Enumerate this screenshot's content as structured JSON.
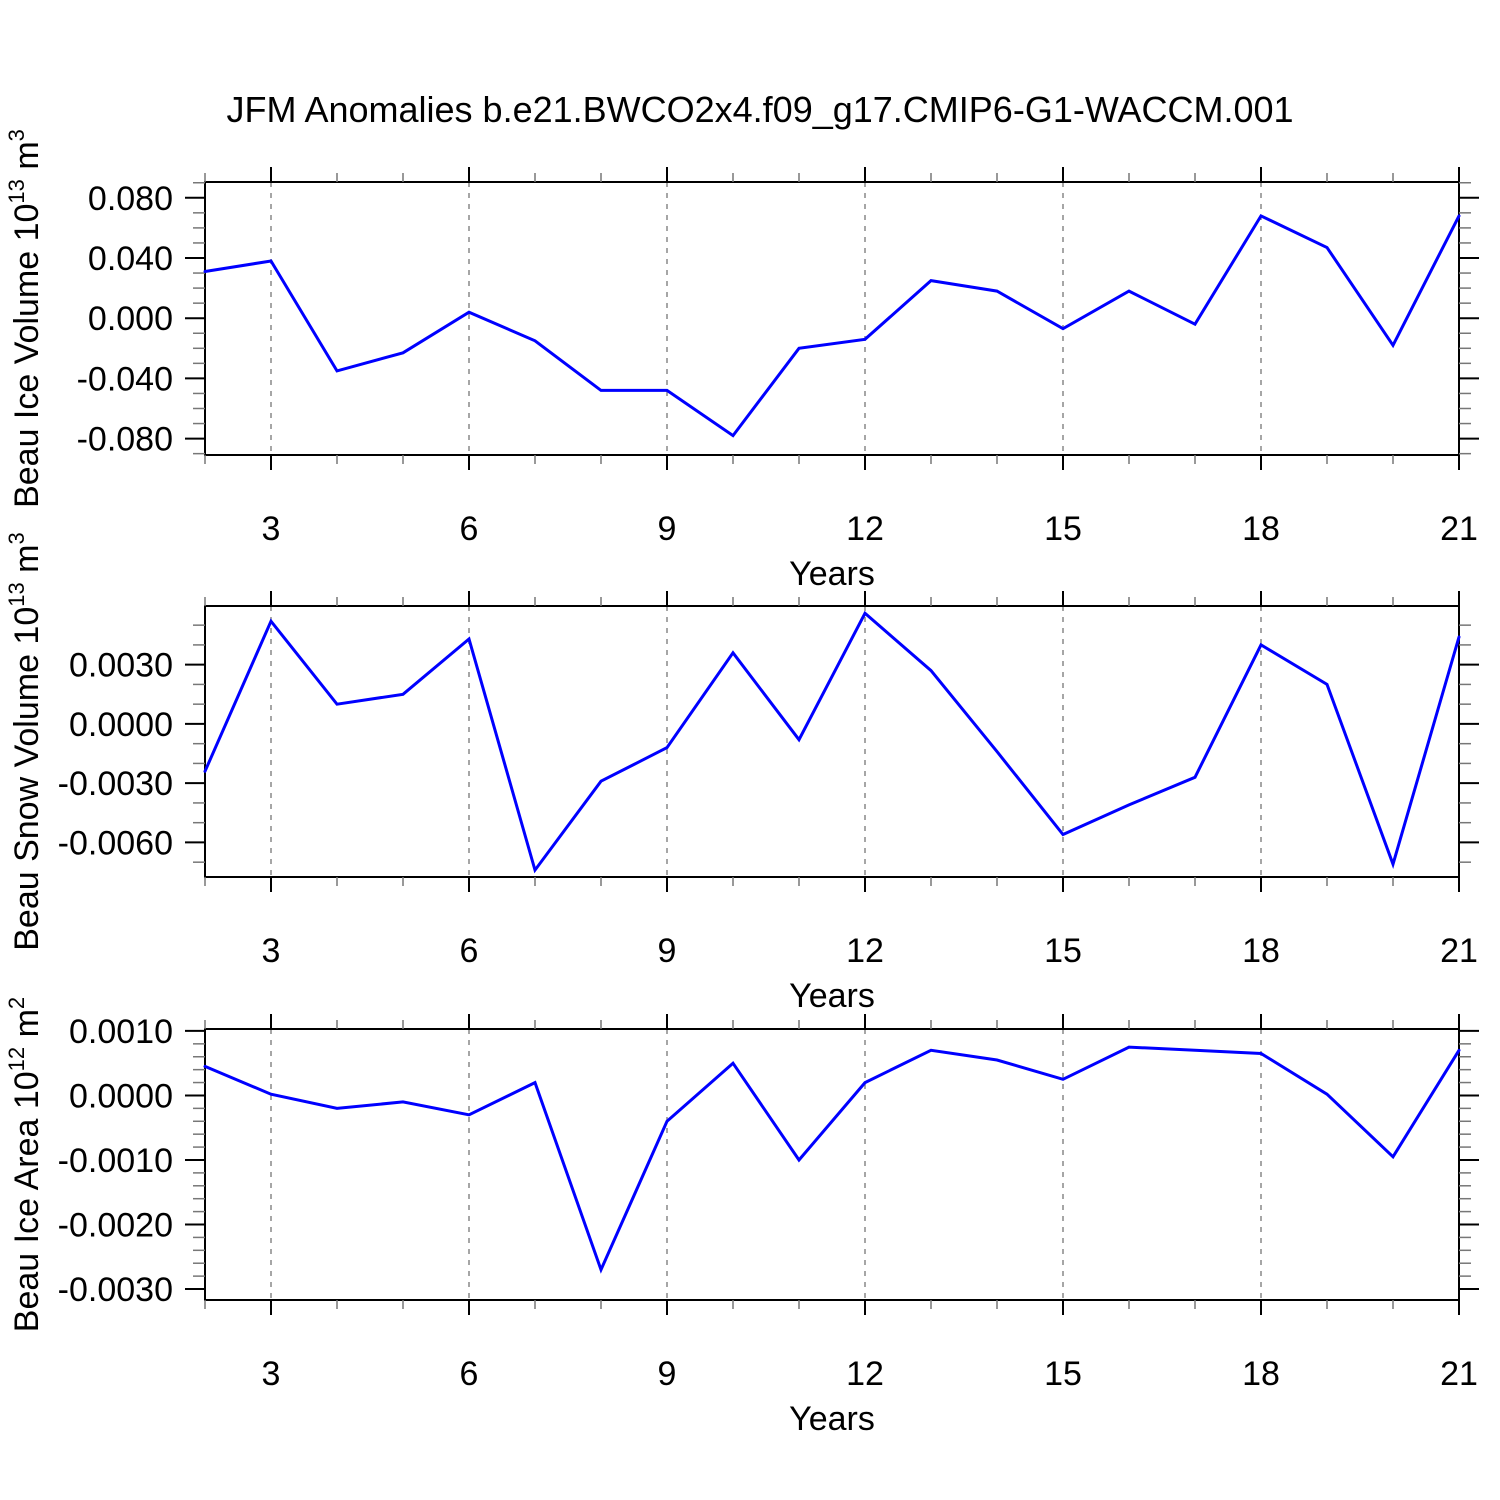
{
  "title": "JFM Anomalies b.e21.BWCO2x4.f09_g17.CMIP6-G1-WACCM.001",
  "line_color": "#0000ff",
  "grid_color": "#888888",
  "axis_color": "#000000",
  "minor_tick_color": "#777777",
  "x_axis": {
    "label": "Years",
    "range": [
      2,
      21
    ],
    "major_ticks": [
      3,
      6,
      9,
      12,
      15,
      18,
      21
    ],
    "tick_labels": [
      "3",
      "6",
      "9",
      "12",
      "15",
      "18",
      "21"
    ],
    "minor_step": 1,
    "gridline_years": [
      3,
      6,
      9,
      12,
      15,
      18
    ]
  },
  "chart_data": [
    {
      "type": "line",
      "name": "beau-ice-volume",
      "ylabel": "Beau Ice Volume 10^13 m^3",
      "ylabel_parts": {
        "prefix": "Beau Ice Volume 10",
        "sup1": "13",
        "mid": " m",
        "sup2": "3"
      },
      "x": [
        2,
        3,
        4,
        5,
        6,
        7,
        8,
        9,
        10,
        11,
        12,
        13,
        14,
        15,
        16,
        17,
        18,
        19,
        20,
        21
      ],
      "values": [
        0.031,
        0.038,
        -0.035,
        -0.023,
        0.004,
        -0.015,
        -0.048,
        -0.048,
        -0.078,
        -0.02,
        -0.014,
        0.025,
        0.018,
        -0.007,
        0.018,
        -0.004,
        0.068,
        0.047,
        -0.018,
        0.068
      ],
      "ylim": [
        -0.0909,
        0.0905
      ],
      "ytick_values": [
        0.08,
        0.04,
        0.0,
        -0.04,
        -0.08
      ],
      "ytick_labels": [
        "0.080",
        "0.040",
        "0.000",
        "-0.040",
        "-0.080"
      ],
      "yminor_step": 0.01,
      "grid": "x-dashed",
      "legend": "none"
    },
    {
      "type": "line",
      "name": "beau-snow-volume",
      "ylabel": "Beau Snow Volume 10^13 m^3",
      "ylabel_parts": {
        "prefix": "Beau Snow Volume 10",
        "sup1": "13",
        "mid": " m",
        "sup2": "3"
      },
      "x": [
        2,
        3,
        4,
        5,
        6,
        7,
        8,
        9,
        10,
        11,
        12,
        13,
        14,
        15,
        16,
        17,
        18,
        19,
        20,
        21
      ],
      "values": [
        -0.0024,
        0.0052,
        0.001,
        0.0015,
        0.0043,
        -0.0074,
        -0.0029,
        -0.0012,
        0.0036,
        -0.0008,
        0.0056,
        0.0027,
        -0.0014,
        -0.0056,
        -0.0041,
        -0.0027,
        0.004,
        0.002,
        -0.0071,
        0.0044
      ],
      "ylim": [
        -0.00775,
        0.00597
      ],
      "ytick_values": [
        0.003,
        0.0,
        -0.003,
        -0.006
      ],
      "ytick_labels": [
        "0.0030",
        "0.0000",
        "-0.0030",
        "-0.0060"
      ],
      "yminor_step": 0.001,
      "grid": "x-dashed",
      "legend": "none"
    },
    {
      "type": "line",
      "name": "beau-ice-area",
      "ylabel": "Beau Ice Area 10^12 m^2",
      "ylabel_parts": {
        "prefix": "Beau Ice Area 10",
        "sup1": "12",
        "mid": " m",
        "sup2": "2"
      },
      "x": [
        2,
        3,
        4,
        5,
        6,
        7,
        8,
        9,
        10,
        11,
        12,
        13,
        14,
        15,
        16,
        17,
        18,
        19,
        20,
        21
      ],
      "values": [
        0.00045,
        2e-05,
        -0.0002,
        -0.0001,
        -0.0003,
        0.0002,
        -0.0027,
        -0.0004,
        0.0005,
        -0.001,
        0.0002,
        0.0007,
        0.00055,
        0.00025,
        0.00075,
        0.0007,
        0.00065,
        2e-05,
        -0.00095,
        0.0007
      ],
      "ylim": [
        -0.00317,
        0.00103
      ],
      "ytick_values": [
        0.001,
        0.0,
        -0.001,
        -0.002,
        -0.003
      ],
      "ytick_labels": [
        "0.0010",
        "0.0000",
        "-0.0010",
        "-0.0020",
        "-0.0030"
      ],
      "yminor_step": 0.0002,
      "grid": "x-dashed",
      "legend": "none"
    }
  ]
}
